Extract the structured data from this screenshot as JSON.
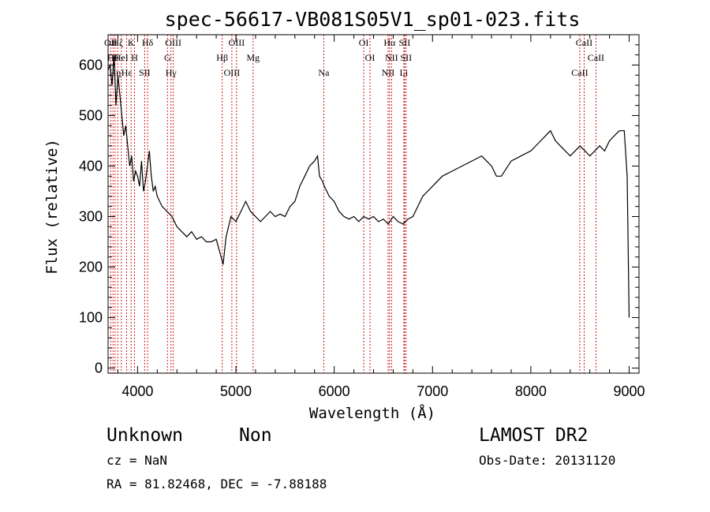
{
  "chart_data": {
    "type": "line",
    "title": "spec-56617-VB081S05V1_sp01-023.fits",
    "xlabel": "Wavelength (Å)",
    "ylabel": "Flux (relative)",
    "xlim": [
      3700,
      9100
    ],
    "ylim": [
      -10,
      660
    ],
    "xticks": [
      4000,
      5000,
      6000,
      7000,
      8000,
      9000
    ],
    "yticks": [
      0,
      100,
      200,
      300,
      400,
      500,
      600
    ],
    "line_color": "#000000",
    "marker_color": "#cc0000",
    "series": [
      {
        "x": [
          3700,
          3720,
          3740,
          3760,
          3780,
          3800,
          3820,
          3840,
          3860,
          3880,
          3900,
          3920,
          3940,
          3960,
          3980,
          4000,
          4020,
          4040,
          4060,
          4080,
          4100,
          4120,
          4140,
          4160,
          4180,
          4200,
          4250,
          4300,
          4350,
          4400,
          4450,
          4500,
          4550,
          4600,
          4650,
          4700,
          4750,
          4800,
          4850,
          4870,
          4900,
          4950,
          5000,
          5050,
          5100,
          5150,
          5200,
          5250,
          5300,
          5350,
          5400,
          5450,
          5500,
          5550,
          5600,
          5650,
          5700,
          5750,
          5800,
          5830,
          5850,
          5880,
          5900,
          5950,
          6000,
          6050,
          6100,
          6150,
          6200,
          6250,
          6300,
          6350,
          6400,
          6450,
          6500,
          6550,
          6600,
          6650,
          6700,
          6750,
          6800,
          6850,
          6900,
          6950,
          7000,
          7100,
          7200,
          7300,
          7400,
          7500,
          7550,
          7600,
          7650,
          7700,
          7800,
          7900,
          8000,
          8100,
          8150,
          8200,
          8250,
          8300,
          8350,
          8400,
          8450,
          8500,
          8550,
          8600,
          8650,
          8700,
          8750,
          8800,
          8850,
          8900,
          8950,
          8980,
          9000
        ],
        "y": [
          590,
          600,
          560,
          620,
          520,
          580,
          540,
          500,
          460,
          480,
          440,
          400,
          420,
          370,
          390,
          380,
          360,
          410,
          350,
          370,
          400,
          430,
          380,
          350,
          360,
          340,
          320,
          310,
          300,
          280,
          270,
          260,
          270,
          255,
          260,
          250,
          250,
          255,
          220,
          205,
          260,
          300,
          290,
          310,
          330,
          310,
          300,
          290,
          300,
          310,
          300,
          305,
          300,
          320,
          330,
          360,
          380,
          400,
          410,
          420,
          380,
          370,
          360,
          340,
          330,
          310,
          300,
          295,
          300,
          290,
          300,
          295,
          300,
          290,
          295,
          285,
          300,
          290,
          285,
          295,
          300,
          320,
          340,
          350,
          360,
          380,
          390,
          400,
          410,
          420,
          410,
          400,
          380,
          380,
          410,
          420,
          430,
          450,
          460,
          470,
          450,
          440,
          430,
          420,
          430,
          440,
          430,
          420,
          430,
          440,
          430,
          450,
          460,
          470,
          470,
          380,
          100
        ]
      }
    ],
    "line_markers": [
      {
        "wl": 3727,
        "label": "OII"
      },
      {
        "wl": 3750,
        "label": "Hθ"
      },
      {
        "wl": 3771,
        "label": "Hη"
      },
      {
        "wl": 3798,
        "label": "Hζ"
      },
      {
        "wl": 3835,
        "label": "HeI"
      },
      {
        "wl": 3889,
        "label": "Hε"
      },
      {
        "wl": 3934,
        "label": "K"
      },
      {
        "wl": 3969,
        "label": "H"
      },
      {
        "wl": 4072,
        "label": "SII"
      },
      {
        "wl": 4102,
        "label": "Hδ"
      },
      {
        "wl": 4304,
        "label": "G"
      },
      {
        "wl": 4340,
        "label": "Hγ"
      },
      {
        "wl": 4363,
        "label": "OIII"
      },
      {
        "wl": 4861,
        "label": "Hβ"
      },
      {
        "wl": 4959,
        "label": "OIII"
      },
      {
        "wl": 5007,
        "label": "OIII"
      },
      {
        "wl": 5175,
        "label": "Mg"
      },
      {
        "wl": 5894,
        "label": "Na"
      },
      {
        "wl": 6300,
        "label": "OI"
      },
      {
        "wl": 6364,
        "label": "OI"
      },
      {
        "wl": 6548,
        "label": "NII"
      },
      {
        "wl": 6563,
        "label": "Hα"
      },
      {
        "wl": 6583,
        "label": "NII"
      },
      {
        "wl": 6708,
        "label": "Li"
      },
      {
        "wl": 6716,
        "label": "SII"
      },
      {
        "wl": 6731,
        "label": "SII"
      },
      {
        "wl": 8498,
        "label": "CaII"
      },
      {
        "wl": 8542,
        "label": "CaII"
      },
      {
        "wl": 8662,
        "label": "CaII"
      }
    ]
  },
  "footer": {
    "class_text": "Unknown",
    "subclass_text": "Non",
    "survey_text": "LAMOST DR2",
    "cz_text": "cz = NaN",
    "obsdate_text": "Obs-Date: 20131120",
    "radec_text": "RA =  81.82468, DEC =  -7.88188"
  }
}
